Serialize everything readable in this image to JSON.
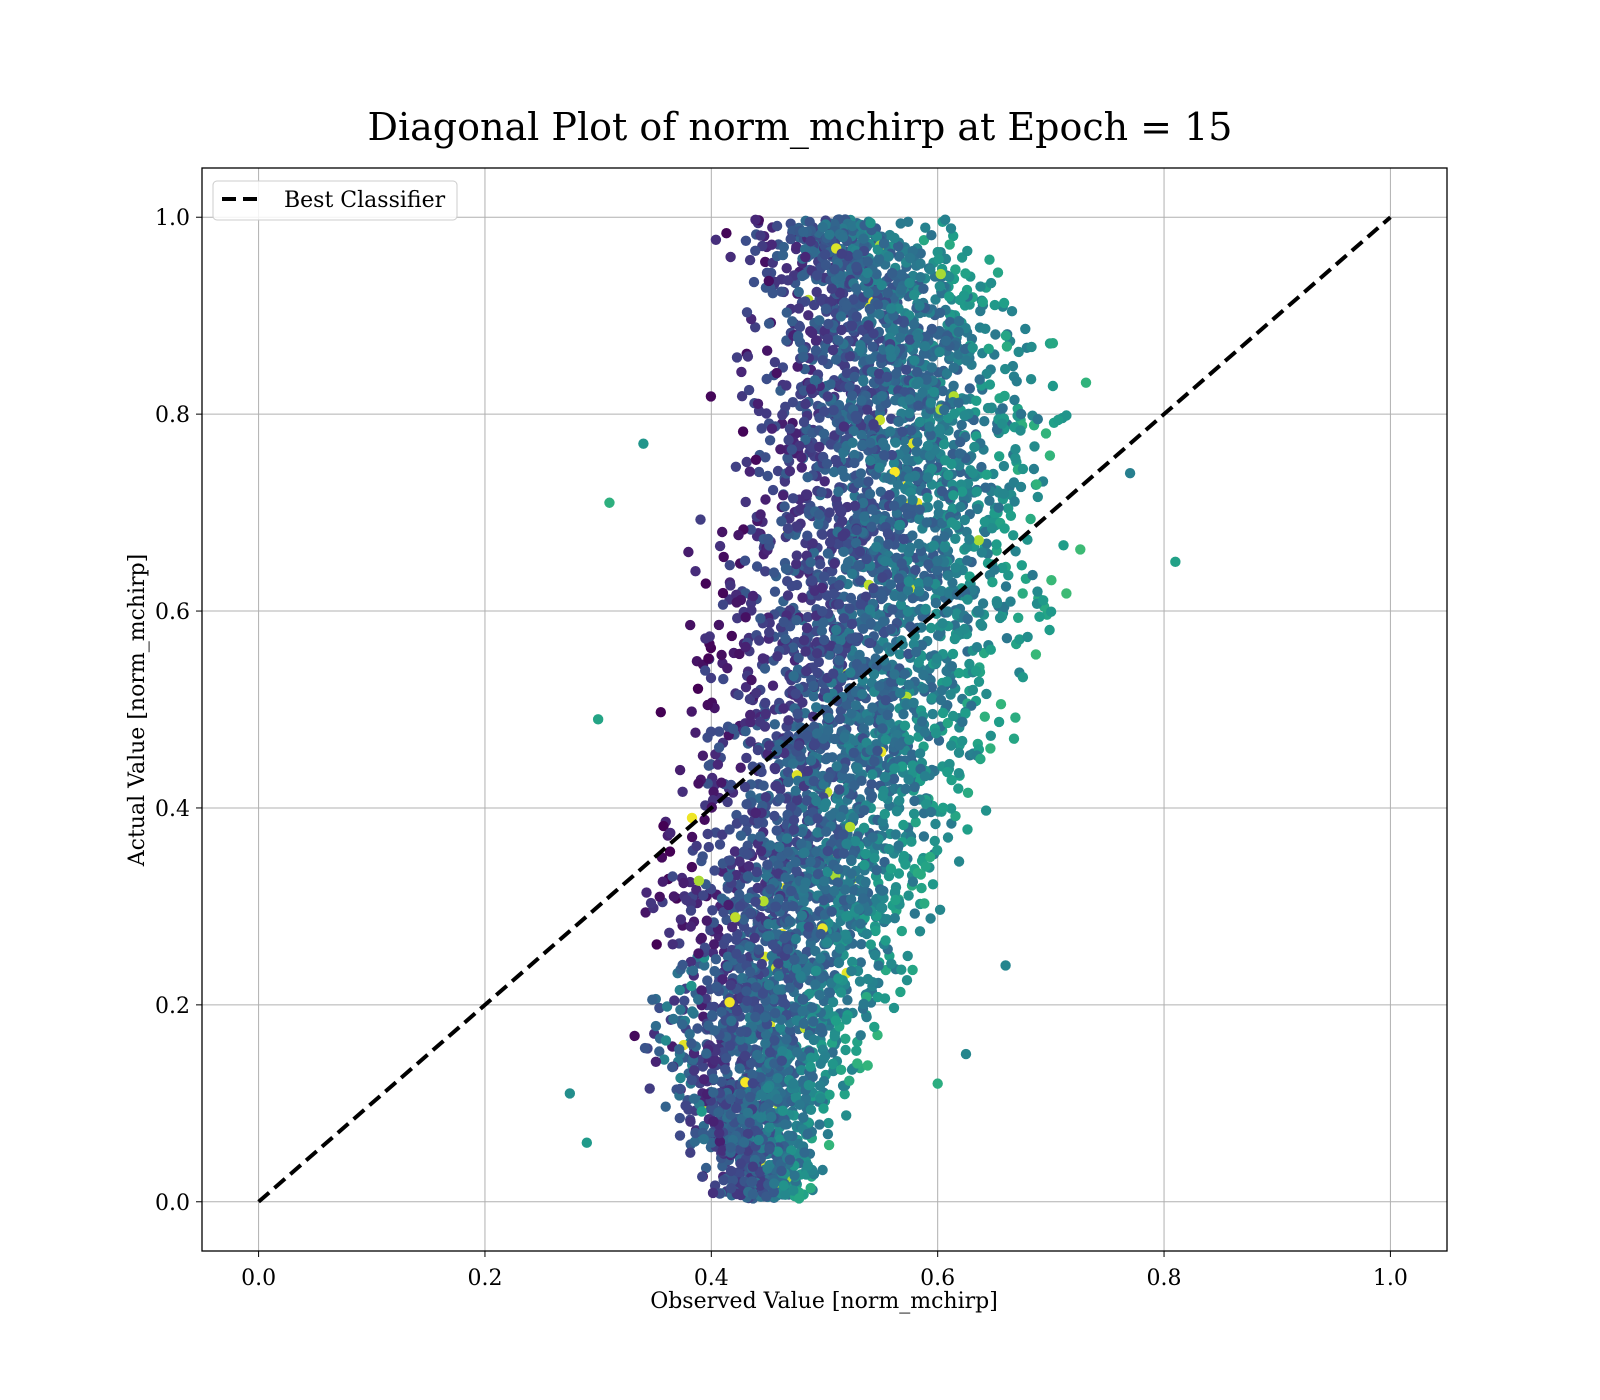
{
  "chart_data": {
    "type": "scatter",
    "title": "Diagonal Plot of norm_mchirp at Epoch = 15",
    "xlabel": "Observed Value [norm_mchirp]",
    "ylabel": "Actual Value [norm_mchirp]",
    "xlim": [
      -0.05,
      1.05
    ],
    "ylim": [
      -0.05,
      1.05
    ],
    "x_ticks": [
      "0.0",
      "0.2",
      "0.4",
      "0.6",
      "0.8",
      "1.0"
    ],
    "y_ticks": [
      "0.0",
      "0.2",
      "0.4",
      "0.6",
      "0.8",
      "1.0"
    ],
    "grid": true,
    "legend_position": "upper-left",
    "colormap": "viridis",
    "colors": {
      "viridis_dark": "#440154",
      "viridis_mid": "#21918c",
      "viridis_light": "#fde725",
      "line": "#000000",
      "grid": "#b0b0b0"
    },
    "reference_line": {
      "name": "Best Classifier",
      "style": "dashed",
      "x": [
        0.0,
        1.0
      ],
      "y": [
        0.0,
        1.0
      ]
    },
    "scatter_band": [
      {
        "y": 0.0,
        "x_low": 0.4,
        "x_high": 0.5
      },
      {
        "y": 0.1,
        "x_low": 0.34,
        "x_high": 0.54
      },
      {
        "y": 0.2,
        "x_low": 0.32,
        "x_high": 0.59
      },
      {
        "y": 0.3,
        "x_low": 0.33,
        "x_high": 0.63
      },
      {
        "y": 0.4,
        "x_low": 0.34,
        "x_high": 0.66
      },
      {
        "y": 0.5,
        "x_low": 0.35,
        "x_high": 0.7
      },
      {
        "y": 0.6,
        "x_low": 0.36,
        "x_high": 0.73
      },
      {
        "y": 0.7,
        "x_low": 0.37,
        "x_high": 0.74
      },
      {
        "y": 0.8,
        "x_low": 0.38,
        "x_high": 0.74
      },
      {
        "y": 0.9,
        "x_low": 0.39,
        "x_high": 0.72
      },
      {
        "y": 1.0,
        "x_low": 0.4,
        "x_high": 0.62
      }
    ],
    "outliers": [
      {
        "x": 0.81,
        "y": 0.65
      },
      {
        "x": 0.31,
        "y": 0.71
      },
      {
        "x": 0.275,
        "y": 0.11
      },
      {
        "x": 0.77,
        "y": 0.74
      },
      {
        "x": 0.29,
        "y": 0.06
      },
      {
        "x": 0.34,
        "y": 0.77
      },
      {
        "x": 0.3,
        "y": 0.49
      },
      {
        "x": 0.66,
        "y": 0.24
      },
      {
        "x": 0.625,
        "y": 0.15
      },
      {
        "x": 0.6,
        "y": 0.12
      }
    ]
  }
}
